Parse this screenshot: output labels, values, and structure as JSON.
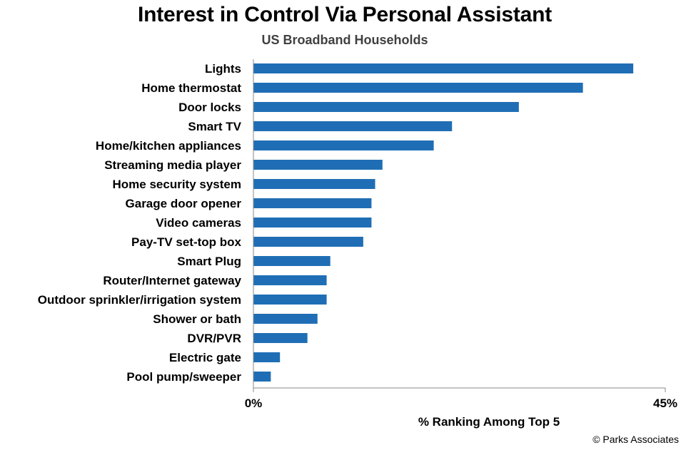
{
  "chart_data": {
    "type": "bar",
    "orientation": "horizontal",
    "title": "Interest in Control Via Personal Assistant",
    "subtitle": "US Broadband Households",
    "xlabel": "% Ranking Among Top 5",
    "xlim": [
      0,
      45
    ],
    "x_tick_labels": [
      "0%",
      "45%"
    ],
    "grid": false,
    "bar_color": "#1F6EB5",
    "categories": [
      "Lights",
      "Home thermostat",
      "Door locks",
      "Smart TV",
      "Home/kitchen appliances",
      "Streaming media player",
      "Home security system",
      "Garage door opener",
      "Video cameras",
      "Pay-TV set-top box",
      "Smart Plug",
      "Router/Internet gateway",
      "Outdoor sprinkler/irrigation system",
      "Shower or bath",
      "DVR/PVR",
      "Electric gate",
      "Pool pump/sweeper"
    ],
    "values": [
      41.5,
      36,
      29,
      21.7,
      19.7,
      14.1,
      13.3,
      12.9,
      12.9,
      12.0,
      8.4,
      8.0,
      8.0,
      7.0,
      5.9,
      2.9,
      1.9
    ]
  },
  "source": "© Parks Associates"
}
